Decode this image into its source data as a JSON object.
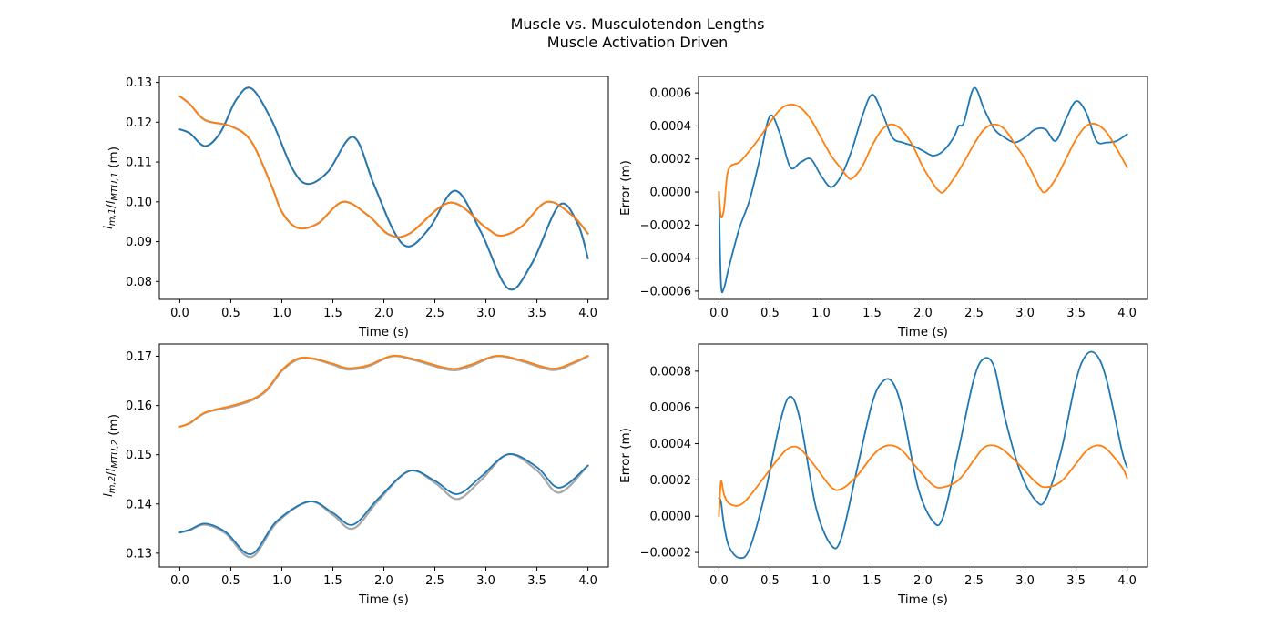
{
  "figure": {
    "title_line1": "Muscle vs. Musculotendon Lengths",
    "title_line2": "Muscle Activation Driven"
  },
  "colors": {
    "blue": "#1f77b4",
    "orange": "#ff7f0e",
    "gray": "#a8a8a8"
  },
  "chart_data": [
    {
      "type": "line",
      "title": "",
      "xlabel": "Time (s)",
      "ylabel": "l_{m,1}/l_{MTU,1} (m)",
      "xlim": [
        -0.2,
        4.2
      ],
      "ylim": [
        0.0755,
        0.1315
      ],
      "xticks": [
        "0.0",
        "0.5",
        "1.0",
        "1.5",
        "2.0",
        "2.5",
        "3.0",
        "3.5",
        "4.0"
      ],
      "yticks": [
        "0.08",
        "0.09",
        "0.10",
        "0.11",
        "0.12",
        "0.13"
      ],
      "grid": false,
      "series": [
        {
          "color": "gray",
          "width": 2.2,
          "x": [
            0,
            0.1,
            0.25,
            0.4,
            0.55,
            0.7,
            0.9,
            1.1,
            1.25,
            1.45,
            1.7,
            1.9,
            2.1,
            2.25,
            2.45,
            2.7,
            2.95,
            3.22,
            3.45,
            3.72,
            3.9,
            4.0
          ],
          "y": [
            0.1182,
            0.1172,
            0.114,
            0.1175,
            0.1255,
            0.1285,
            0.1205,
            0.1085,
            0.1045,
            0.1075,
            0.1163,
            0.1045,
            0.0925,
            0.0888,
            0.0935,
            0.1028,
            0.0925,
            0.0782,
            0.0845,
            0.0992,
            0.0945,
            0.0858
          ]
        },
        {
          "color": "gray",
          "width": 2.2,
          "x": [
            0,
            0.1,
            0.25,
            0.5,
            0.7,
            0.9,
            1.0,
            1.15,
            1.35,
            1.6,
            1.85,
            2.05,
            2.25,
            2.65,
            3.0,
            3.15,
            3.35,
            3.6,
            3.85,
            4.0
          ],
          "y": [
            0.1265,
            0.1245,
            0.1205,
            0.119,
            0.1152,
            0.104,
            0.0975,
            0.0935,
            0.0945,
            0.1,
            0.0965,
            0.0918,
            0.092,
            0.0998,
            0.0935,
            0.0915,
            0.0938,
            0.1,
            0.0965,
            0.092
          ]
        },
        {
          "color": "blue",
          "width": 1.8,
          "x": [
            0,
            0.1,
            0.25,
            0.4,
            0.55,
            0.7,
            0.9,
            1.1,
            1.25,
            1.45,
            1.7,
            1.9,
            2.1,
            2.25,
            2.45,
            2.7,
            2.95,
            3.22,
            3.45,
            3.72,
            3.9,
            4.0
          ],
          "y": [
            0.1182,
            0.1172,
            0.114,
            0.1175,
            0.1255,
            0.1285,
            0.1205,
            0.1085,
            0.1045,
            0.1075,
            0.1163,
            0.1045,
            0.0925,
            0.0888,
            0.0935,
            0.1028,
            0.0925,
            0.0782,
            0.0845,
            0.0992,
            0.0945,
            0.0858
          ]
        },
        {
          "color": "orange",
          "width": 1.8,
          "x": [
            0,
            0.1,
            0.25,
            0.5,
            0.7,
            0.9,
            1.0,
            1.15,
            1.35,
            1.6,
            1.85,
            2.05,
            2.25,
            2.65,
            3.0,
            3.15,
            3.35,
            3.6,
            3.85,
            4.0
          ],
          "y": [
            0.1265,
            0.1245,
            0.1205,
            0.119,
            0.1152,
            0.104,
            0.0975,
            0.0935,
            0.0945,
            0.1,
            0.0965,
            0.0918,
            0.092,
            0.0998,
            0.0935,
            0.0915,
            0.0938,
            0.1,
            0.0965,
            0.092
          ]
        }
      ]
    },
    {
      "type": "line",
      "title": "",
      "xlabel": "Time (s)",
      "ylabel": "Error (m)",
      "xlim": [
        -0.2,
        4.2
      ],
      "ylim": [
        -0.00065,
        0.0007
      ],
      "xticks": [
        "0.0",
        "0.5",
        "1.0",
        "1.5",
        "2.0",
        "2.5",
        "3.0",
        "3.5",
        "4.0"
      ],
      "yticks": [
        "−0.0006",
        "−0.0004",
        "−0.0002",
        "0.0000",
        "0.0002",
        "0.0004",
        "0.0006"
      ],
      "grid": false,
      "series": [
        {
          "color": "blue",
          "width": 1.8,
          "x": [
            0,
            0.02,
            0.05,
            0.1,
            0.2,
            0.3,
            0.4,
            0.5,
            0.6,
            0.7,
            0.8,
            0.9,
            1.0,
            1.1,
            1.2,
            1.3,
            1.4,
            1.5,
            1.6,
            1.7,
            1.8,
            1.9,
            2.0,
            2.1,
            2.2,
            2.3,
            2.35,
            2.4,
            2.5,
            2.6,
            2.7,
            2.8,
            2.9,
            3.0,
            3.1,
            3.2,
            3.3,
            3.4,
            3.5,
            3.6,
            3.7,
            3.8,
            3.9,
            4.0
          ],
          "y": [
            0,
            -0.00055,
            -0.00058,
            -0.00045,
            -0.00022,
            -5e-05,
            0.0002,
            0.00046,
            0.00035,
            0.00015,
            0.00018,
            0.0002,
            0.0001,
            3e-05,
            0.0001,
            0.00025,
            0.00045,
            0.00059,
            0.00048,
            0.00033,
            0.0003,
            0.00028,
            0.00025,
            0.00022,
            0.00025,
            0.00033,
            0.0004,
            0.00042,
            0.00063,
            0.0005,
            0.00038,
            0.00033,
            0.0003,
            0.00033,
            0.00038,
            0.00038,
            0.00031,
            0.00044,
            0.00055,
            0.00048,
            0.00031,
            0.0003,
            0.00031,
            0.00035
          ]
        },
        {
          "color": "orange",
          "width": 1.8,
          "x": [
            0,
            0.02,
            0.05,
            0.08,
            0.12,
            0.2,
            0.3,
            0.4,
            0.5,
            0.6,
            0.7,
            0.8,
            0.9,
            1.0,
            1.1,
            1.2,
            1.25,
            1.3,
            1.4,
            1.5,
            1.6,
            1.7,
            1.8,
            1.9,
            2.0,
            2.1,
            2.15,
            2.2,
            2.3,
            2.4,
            2.5,
            2.6,
            2.7,
            2.8,
            2.9,
            3.0,
            3.1,
            3.15,
            3.2,
            3.3,
            3.4,
            3.5,
            3.6,
            3.7,
            3.8,
            3.9,
            4.0
          ],
          "y": [
            0,
            -0.00015,
            -0.0001,
            0.0001,
            0.00016,
            0.00018,
            0.00025,
            0.00033,
            0.00042,
            0.0005,
            0.00053,
            0.00051,
            0.00044,
            0.00033,
            0.00022,
            0.00014,
            0.0001,
            8e-05,
            0.00015,
            0.00028,
            0.00038,
            0.00041,
            0.00037,
            0.00028,
            0.00015,
            5e-05,
            1e-05,
            0,
            8e-05,
            0.00018,
            0.00029,
            0.00038,
            0.00041,
            0.00038,
            0.00029,
            0.0002,
            8e-05,
            2e-05,
            0,
            8e-05,
            0.0002,
            0.00032,
            0.0004,
            0.00041,
            0.00036,
            0.00026,
            0.00015
          ]
        }
      ]
    },
    {
      "type": "line",
      "title": "",
      "xlabel": "Time (s)",
      "ylabel": "l_{m,2}/l_{MTU,2} (m)",
      "xlim": [
        -0.2,
        4.2
      ],
      "ylim": [
        0.1272,
        0.1725
      ],
      "xticks": [
        "0.0",
        "0.5",
        "1.0",
        "1.5",
        "2.0",
        "2.5",
        "3.0",
        "3.5",
        "4.0"
      ],
      "yticks": [
        "0.13",
        "0.14",
        "0.15",
        "0.16",
        "0.17"
      ],
      "grid": false,
      "series": [
        {
          "color": "gray",
          "width": 2.2,
          "x": [
            0,
            0.1,
            0.25,
            0.45,
            0.7,
            0.95,
            1.27,
            1.5,
            1.7,
            1.95,
            2.25,
            2.5,
            2.72,
            2.95,
            3.22,
            3.5,
            3.72,
            4.0
          ],
          "y": [
            0.1342,
            0.1347,
            0.1358,
            0.134,
            0.1292,
            0.1362,
            0.1405,
            0.1378,
            0.135,
            0.1408,
            0.1467,
            0.1443,
            0.141,
            0.1448,
            0.1501,
            0.1468,
            0.1423,
            0.1478
          ]
        },
        {
          "color": "gray",
          "width": 2.2,
          "x": [
            0,
            0.1,
            0.25,
            0.5,
            0.7,
            0.85,
            1.0,
            1.15,
            1.3,
            1.5,
            1.65,
            1.85,
            2.08,
            2.3,
            2.65,
            2.85,
            3.1,
            3.35,
            3.65,
            3.85,
            4.0
          ],
          "y": [
            0.1557,
            0.1564,
            0.1585,
            0.1597,
            0.161,
            0.163,
            0.167,
            0.1693,
            0.1695,
            0.1683,
            0.1673,
            0.168,
            0.17,
            0.1692,
            0.1672,
            0.168,
            0.17,
            0.169,
            0.1672,
            0.1685,
            0.17
          ]
        },
        {
          "color": "blue",
          "width": 1.8,
          "x": [
            0,
            0.1,
            0.25,
            0.45,
            0.7,
            0.95,
            1.27,
            1.5,
            1.7,
            1.95,
            2.25,
            2.5,
            2.72,
            2.95,
            3.22,
            3.5,
            3.72,
            4.0
          ],
          "y": [
            0.1342,
            0.1348,
            0.136,
            0.1343,
            0.1298,
            0.1365,
            0.1405,
            0.1382,
            0.1358,
            0.1412,
            0.1467,
            0.1447,
            0.142,
            0.1455,
            0.1501,
            0.1475,
            0.1433,
            0.1478
          ]
        },
        {
          "color": "orange",
          "width": 1.8,
          "x": [
            0,
            0.1,
            0.25,
            0.5,
            0.7,
            0.85,
            1.0,
            1.15,
            1.3,
            1.5,
            1.65,
            1.85,
            2.08,
            2.3,
            2.65,
            2.85,
            3.1,
            3.35,
            3.65,
            3.85,
            4.0
          ],
          "y": [
            0.1557,
            0.1565,
            0.1586,
            0.1599,
            0.1612,
            0.1632,
            0.1672,
            0.1695,
            0.1696,
            0.1685,
            0.1676,
            0.1682,
            0.1701,
            0.1694,
            0.1675,
            0.1683,
            0.1701,
            0.1692,
            0.1675,
            0.1687,
            0.1701
          ]
        }
      ]
    },
    {
      "type": "line",
      "title": "",
      "xlabel": "Time (s)",
      "ylabel": "Error (m)",
      "xlim": [
        -0.2,
        4.2
      ],
      "ylim": [
        -0.00028,
        0.00095
      ],
      "xticks": [
        "0.0",
        "0.5",
        "1.0",
        "1.5",
        "2.0",
        "2.5",
        "3.0",
        "3.5",
        "4.0"
      ],
      "yticks": [
        "−0.0002",
        "0.0000",
        "0.0002",
        "0.0004",
        "0.0006",
        "0.0008"
      ],
      "grid": false,
      "series": [
        {
          "color": "blue",
          "width": 1.8,
          "x": [
            0,
            0.02,
            0.05,
            0.1,
            0.2,
            0.3,
            0.45,
            0.6,
            0.7,
            0.8,
            0.95,
            1.1,
            1.2,
            1.35,
            1.5,
            1.6,
            1.7,
            1.8,
            1.95,
            2.1,
            2.2,
            2.35,
            2.5,
            2.6,
            2.7,
            2.8,
            2.95,
            3.1,
            3.2,
            3.35,
            3.5,
            3.6,
            3.7,
            3.8,
            3.95,
            4.0
          ],
          "y": [
            0.0001,
            8e-05,
            -5e-05,
            -0.00017,
            -0.00023,
            -0.00018,
            0.00012,
            0.00052,
            0.00066,
            0.00052,
            5e-05,
            -0.00016,
            -0.00012,
            0.00025,
            0.00062,
            0.00074,
            0.00074,
            0.00058,
            0.00016,
            -3e-05,
            0.0,
            0.00037,
            0.00076,
            0.00087,
            0.00082,
            0.00055,
            0.00025,
            9e-05,
            9e-05,
            0.00035,
            0.00075,
            0.00089,
            0.00089,
            0.00075,
            0.00036,
            0.00027
          ]
        },
        {
          "color": "orange",
          "width": 1.8,
          "x": [
            0,
            0.02,
            0.05,
            0.1,
            0.2,
            0.3,
            0.45,
            0.6,
            0.7,
            0.8,
            0.95,
            1.1,
            1.2,
            1.35,
            1.5,
            1.6,
            1.7,
            1.8,
            1.95,
            2.1,
            2.2,
            2.35,
            2.5,
            2.6,
            2.7,
            2.8,
            2.95,
            3.1,
            3.2,
            3.35,
            3.5,
            3.6,
            3.7,
            3.8,
            3.95,
            4.0
          ],
          "y": [
            0,
            0.00019,
            0.00012,
            7e-05,
            6e-05,
            0.00011,
            0.00022,
            0.00033,
            0.00038,
            0.00037,
            0.00027,
            0.00016,
            0.00015,
            0.00022,
            0.00033,
            0.00038,
            0.00039,
            0.00036,
            0.00026,
            0.00017,
            0.00016,
            0.0002,
            0.00031,
            0.00038,
            0.00039,
            0.00036,
            0.00028,
            0.00019,
            0.00016,
            0.00019,
            0.00029,
            0.00036,
            0.00039,
            0.00037,
            0.00027,
            0.00021
          ]
        }
      ]
    }
  ]
}
